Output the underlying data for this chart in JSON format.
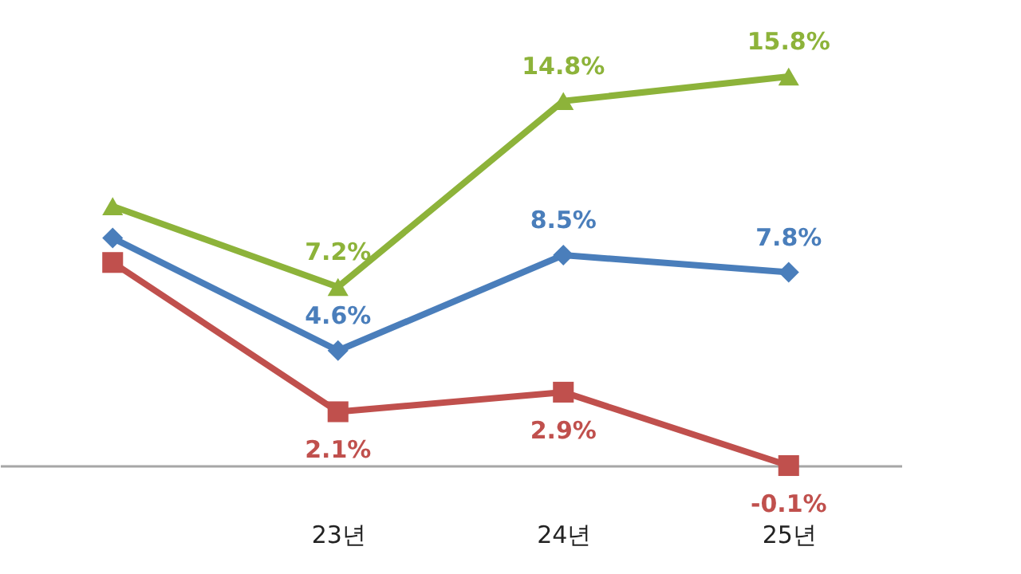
{
  "chart_data": {
    "type": "line",
    "categories": [
      null,
      "23년",
      "24년",
      "25년"
    ],
    "series": [
      {
        "color": "#8db33a",
        "marker": "triangle",
        "values": [
          10.5,
          7.2,
          14.8,
          15.8
        ],
        "value_labels": [
          null,
          "7.2%",
          "14.8%",
          "15.8%"
        ]
      },
      {
        "color": "#4a7ebb",
        "marker": "diamond",
        "values": [
          9.2,
          4.6,
          8.5,
          7.8
        ],
        "value_labels": [
          null,
          "4.6%",
          "8.5%",
          "7.8%"
        ]
      },
      {
        "color": "#c0504d",
        "marker": "square",
        "values": [
          8.2,
          2.1,
          2.9,
          -0.1
        ],
        "value_labels": [
          null,
          "2.1%",
          "2.9%",
          "-0.1%"
        ]
      }
    ],
    "grid": false
  }
}
